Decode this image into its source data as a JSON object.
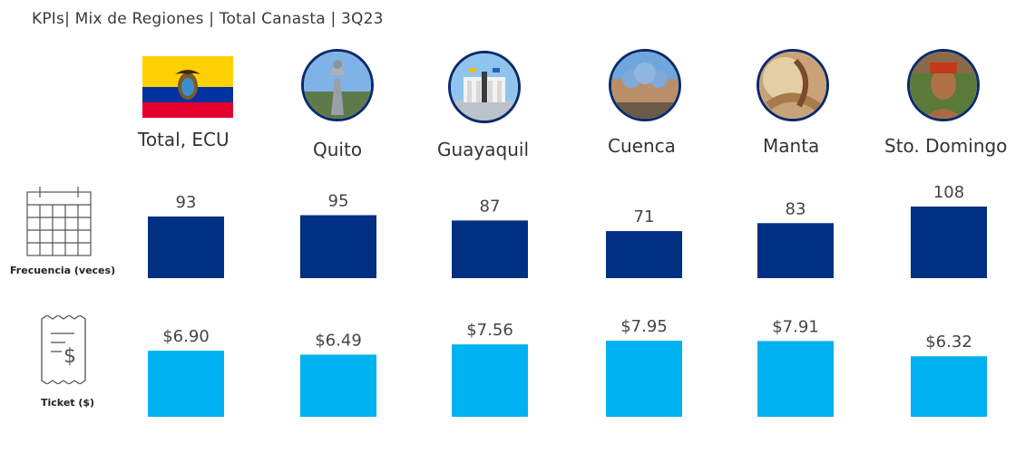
{
  "header": {
    "title": "KPIs| Mix de Regiones | Total Canasta | 3Q23"
  },
  "regions": [
    {
      "name": "Total, ECU",
      "image": "ecuador-flag"
    },
    {
      "name": "Quito",
      "image": "quito-monument-photo"
    },
    {
      "name": "Guayaquil",
      "image": "guayaquil-hemiciclo-photo"
    },
    {
      "name": "Cuenca",
      "image": "cuenca-cathedral-photo"
    },
    {
      "name": "Manta",
      "image": "manta-weaving-photo"
    },
    {
      "name": "Sto. Domingo",
      "image": "tsachila-person-photo"
    }
  ],
  "rows": {
    "frequency": {
      "label": "Frecuencia (veces)",
      "icon": "calendar-icon"
    },
    "ticket": {
      "label": "Ticket ($)",
      "icon": "receipt-dollar-icon"
    }
  },
  "colors": {
    "frequency_bar": "#003082",
    "ticket_bar": "#00b2f0",
    "circle_border": "#0a2a6b"
  },
  "chart_data": [
    {
      "type": "bar",
      "categories": [
        "Total, ECU",
        "Quito",
        "Guayaquil",
        "Cuenca",
        "Manta",
        "Sto. Domingo"
      ],
      "values": [
        93,
        95,
        87,
        71,
        83,
        108
      ],
      "labels": [
        "93",
        "95",
        "87",
        "71",
        "83",
        "108"
      ],
      "title": "",
      "xlabel": "",
      "ylabel": "Frecuencia (veces)",
      "ylim": [
        0,
        108
      ]
    },
    {
      "type": "bar",
      "categories": [
        "Total, ECU",
        "Quito",
        "Guayaquil",
        "Cuenca",
        "Manta",
        "Sto. Domingo"
      ],
      "values": [
        6.9,
        6.49,
        7.56,
        7.95,
        7.91,
        6.32
      ],
      "labels": [
        "$6.90",
        "$6.49",
        "$7.56",
        "$7.95",
        "$7.91",
        "$6.32"
      ],
      "title": "",
      "xlabel": "",
      "ylabel": "Ticket ($)",
      "ylim": [
        0,
        7.95
      ]
    }
  ]
}
